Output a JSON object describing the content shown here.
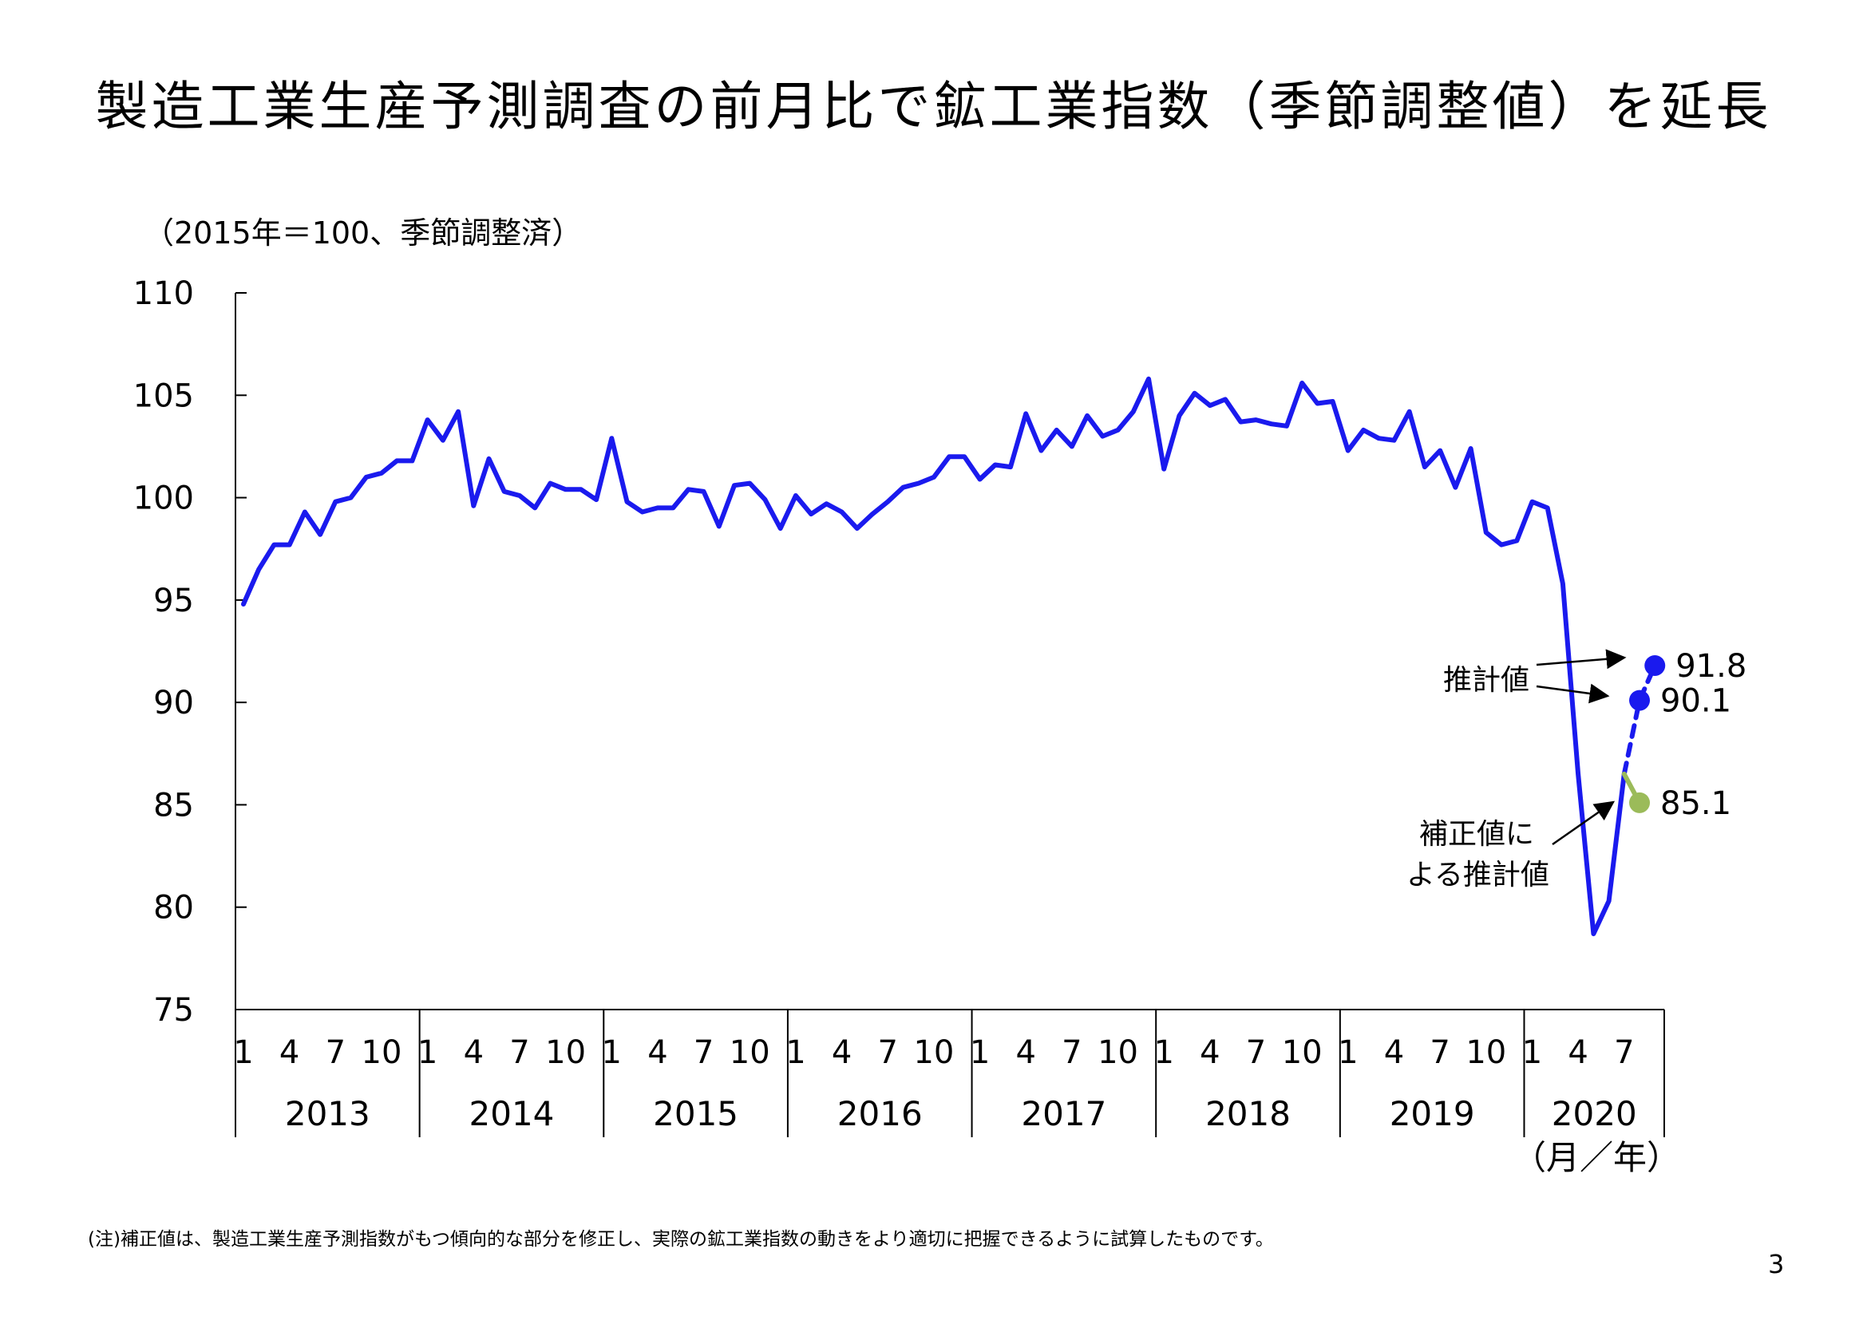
{
  "page": {
    "title": "製造工業生産予測調査の前月比で鉱工業指数（季節調整値）を延長",
    "footnote": "(注)補正値は、製造工業生産予測指数がもつ傾向的な部分を修正し、実際の鉱工業指数の動きをより適切に把握できるように試算したものです。",
    "page_number": "3"
  },
  "chart_data": {
    "type": "line",
    "title": "",
    "unit_note": "（2015年＝100、季節調整済）",
    "xlabel": "（月／年）",
    "ylim": [
      75,
      110
    ],
    "yticks": [
      75,
      80,
      85,
      90,
      95,
      100,
      105,
      110
    ],
    "x_month_ticks": [
      "1",
      "4",
      "7",
      "10"
    ],
    "years": [
      "2013",
      "2014",
      "2015",
      "2016",
      "2017",
      "2018",
      "2019",
      "2020"
    ],
    "x_start": "2013-01",
    "series": [
      {
        "color": "#1a1aee",
        "style": "solid",
        "values": [
          94.8,
          96.5,
          97.7,
          97.7,
          99.3,
          98.2,
          99.8,
          100.0,
          101.0,
          101.2,
          101.8,
          101.8,
          103.8,
          102.8,
          104.2,
          99.6,
          101.9,
          100.3,
          100.1,
          99.5,
          100.7,
          100.4,
          100.4,
          99.9,
          102.9,
          99.8,
          99.3,
          99.5,
          99.5,
          100.4,
          100.3,
          98.6,
          100.6,
          100.7,
          99.9,
          98.5,
          100.1,
          99.2,
          99.7,
          99.3,
          98.5,
          99.2,
          99.8,
          100.5,
          100.7,
          101.0,
          102.0,
          102.0,
          100.9,
          101.6,
          101.5,
          104.1,
          102.3,
          103.3,
          102.5,
          104.0,
          103.0,
          103.3,
          104.2,
          105.8,
          101.4,
          104.0,
          105.1,
          104.5,
          104.8,
          103.7,
          103.8,
          103.6,
          103.5,
          105.6,
          104.6,
          104.7,
          102.3,
          103.3,
          102.9,
          102.8,
          104.2,
          101.5,
          102.3,
          100.5,
          102.4,
          98.3,
          97.7,
          97.9,
          99.8,
          99.5,
          95.8,
          86.5,
          78.7,
          80.3,
          86.5
        ]
      },
      {
        "color": "#1a1aee",
        "style": "dashed",
        "points": [
          [
            "2020-07",
            86.5
          ],
          [
            "2020-08",
            90.1
          ],
          [
            "2020-09",
            91.8
          ]
        ]
      },
      {
        "color": "#9bbb59",
        "style": "solid",
        "points": [
          [
            "2020-07",
            86.5
          ],
          [
            "2020-08",
            85.1
          ]
        ]
      }
    ],
    "point_labels": [
      {
        "x": "2020-09",
        "y": 91.8,
        "label": "91.8",
        "color": "#1a1aee"
      },
      {
        "x": "2020-08",
        "y": 90.1,
        "label": "90.1",
        "color": "#1a1aee"
      },
      {
        "x": "2020-08",
        "y": 85.1,
        "label": "85.1",
        "color": "#9bbb59"
      }
    ],
    "annotations": {
      "estimate": "推計値",
      "corrected_estimate_line1": "補正値に",
      "corrected_estimate_line2": "よる推計値"
    },
    "grid": false,
    "legend": "none"
  }
}
